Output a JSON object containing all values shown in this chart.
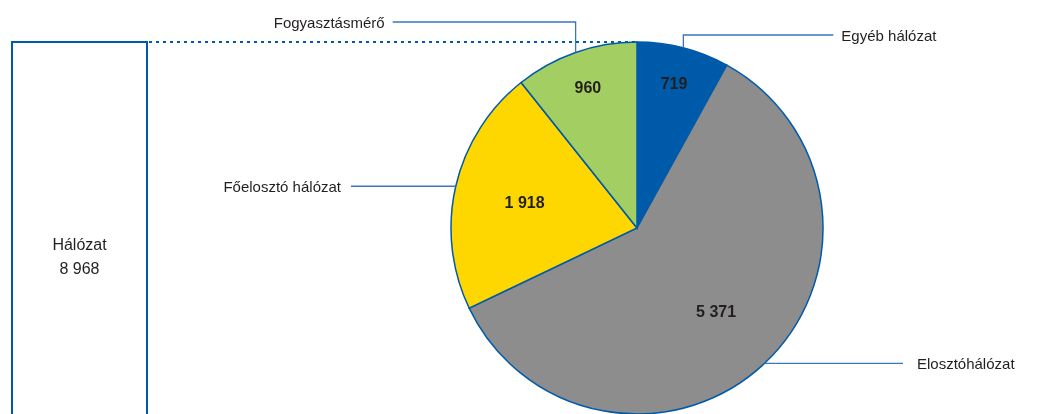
{
  "chart_data": {
    "type": "pie",
    "categories": [
      "Egyéb hálózat",
      "Elosztóhálózat",
      "Főelosztó hálózat",
      "Fogyasztásmérő"
    ],
    "values": [
      719,
      5371,
      1918,
      960
    ],
    "colors": [
      "#005aaa",
      "#8c8d8c",
      "#ffd700",
      "#a3cf62"
    ],
    "value_labels": [
      "719",
      "5 371",
      "1 918",
      "960"
    ],
    "annotations": [
      "Hálózat\n8 968"
    ]
  }
}
